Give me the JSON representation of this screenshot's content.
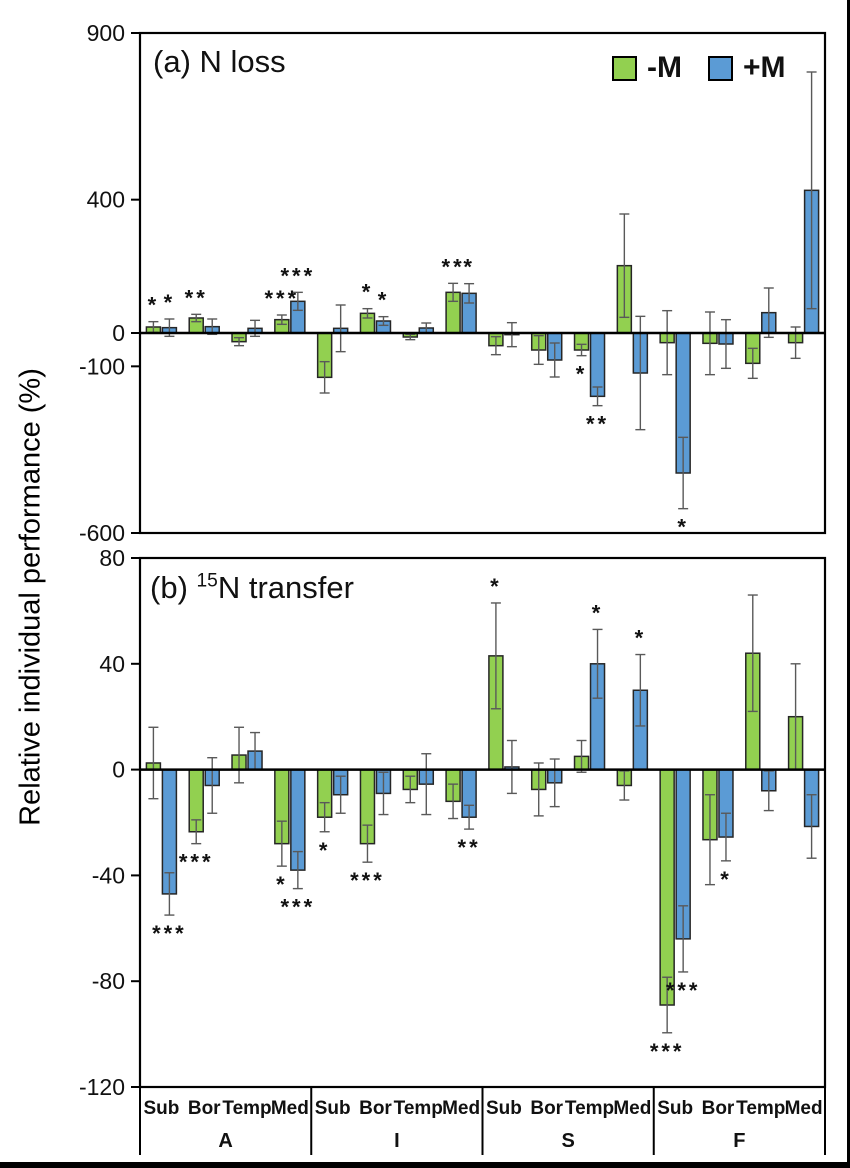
{
  "figure": {
    "y_axis_title": "Relative individual performance (%)",
    "panel_a_title": "(a) N loss",
    "panel_b_prefix": "(b) ",
    "panel_b_sup": "15",
    "panel_b_rest": "N transfer",
    "legend": [
      {
        "label": "-M",
        "color": "#92d050"
      },
      {
        "label": "+M",
        "color": "#5b9bd5"
      }
    ],
    "colors": {
      "green": "#92d050",
      "blue": "#5b9bd5",
      "bar_outline": "#262626",
      "error_bar": "#595959",
      "axis": "#000000"
    }
  },
  "chart_data": [
    {
      "type": "bar",
      "panel": "a",
      "title": "(a) N loss",
      "ylabel": "Relative individual performance (%)",
      "ylim": [
        -600,
        900
      ],
      "yticks": [
        900,
        400,
        0,
        -100,
        -600
      ],
      "grid": false,
      "legend_position": "top-right-inside",
      "groups": [
        "A",
        "I",
        "S",
        "F"
      ],
      "categories": [
        "Sub",
        "Bor",
        "Temp",
        "Med"
      ],
      "series": [
        {
          "name": "-M",
          "color": "#92d050",
          "values": [
            18,
            45,
            -26,
            40,
            -133,
            59,
            -12,
            122,
            -38,
            -51,
            -51,
            202,
            -29,
            -31,
            -91,
            -29
          ],
          "errors": [
            16,
            11,
            12,
            14,
            47,
            14,
            8,
            27,
            27,
            43,
            17,
            155,
            96,
            94,
            45,
            47
          ],
          "sig": [
            "*",
            "**",
            "",
            "***",
            "",
            "*",
            "",
            "**",
            "",
            "",
            "*",
            "",
            "",
            "",
            "",
            ""
          ]
        },
        {
          "name": "+M",
          "color": "#5b9bd5",
          "values": [
            16,
            19,
            14,
            95,
            14,
            36,
            15,
            119,
            -5,
            -81,
            -190,
            -120,
            -420,
            -33,
            61,
            428
          ],
          "errors": [
            26,
            23,
            24,
            27,
            70,
            13,
            15,
            29,
            36,
            51,
            28,
            170,
            107,
            73,
            74,
            355
          ],
          "sig": [
            "*",
            "",
            "",
            "***",
            "",
            "*",
            "",
            "*",
            "",
            "",
            "**",
            "",
            "*",
            "",
            "",
            ""
          ]
        }
      ]
    },
    {
      "type": "bar",
      "panel": "b",
      "title": "(b) 15N transfer",
      "ylabel": "Relative individual performance (%)",
      "ylim": [
        -120,
        80
      ],
      "yticks": [
        80,
        40,
        0,
        -40,
        -80,
        -120
      ],
      "grid": false,
      "groups": [
        "A",
        "I",
        "S",
        "F"
      ],
      "categories": [
        "Sub",
        "Bor",
        "Temp",
        "Med"
      ],
      "series": [
        {
          "name": "-M",
          "color": "#92d050",
          "values": [
            2.5,
            -23.5,
            5.5,
            -28,
            -18,
            -28,
            -7.5,
            -12,
            43,
            -7.5,
            5,
            -6,
            -89,
            -26.5,
            44,
            20
          ],
          "errors": [
            13.5,
            4.5,
            10.5,
            8.5,
            5.5,
            7,
            5,
            6.5,
            20,
            10,
            6,
            5.5,
            10.5,
            17,
            22,
            20
          ],
          "sig": [
            "",
            "***",
            "",
            "*",
            "*",
            "***",
            "",
            "",
            "*",
            "",
            "",
            "",
            "***",
            "",
            "",
            ""
          ]
        },
        {
          "name": "+M",
          "color": "#5b9bd5",
          "values": [
            -47,
            -6,
            7,
            -38,
            -9.5,
            -9,
            -5.5,
            -18,
            1,
            -5,
            40,
            30,
            -64,
            -25.5,
            -8,
            -21.5
          ],
          "errors": [
            8,
            10.5,
            7,
            7,
            7,
            8,
            11.5,
            4.5,
            10,
            9,
            13,
            13.5,
            12.5,
            9,
            7.5,
            12
          ],
          "sig": [
            "***",
            "",
            "",
            "***",
            "",
            "",
            "",
            "**",
            "",
            "",
            "*",
            "*",
            "***",
            "*",
            "",
            ""
          ]
        }
      ]
    }
  ]
}
